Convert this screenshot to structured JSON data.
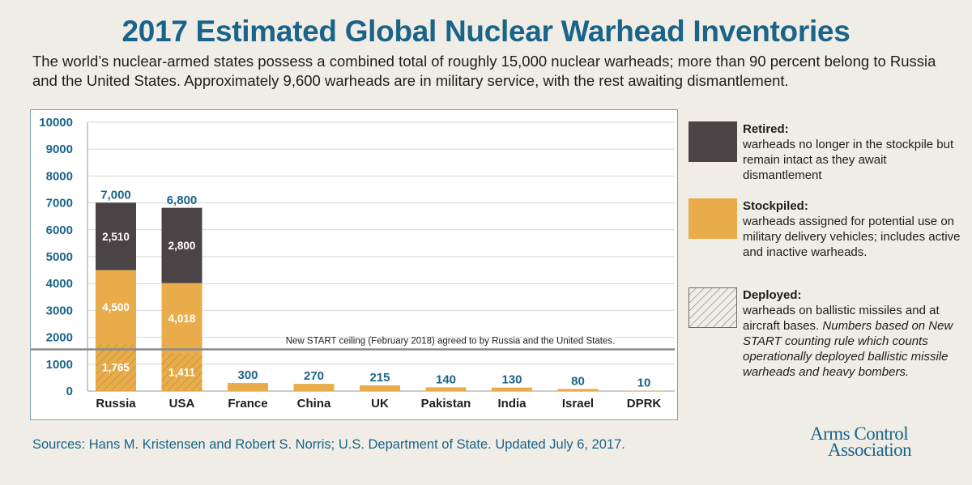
{
  "title": "2017 Estimated Global Nuclear Warhead Inventories",
  "subtitle": "The world’s nuclear-armed states possess a combined total of roughly 15,000 nuclear warheads; more than 90 percent belong to Russia and the United States. Approximately 9,600 warheads are in military service, with the rest awaiting dismantlement.",
  "sources": "Sources: Hans M. Kristensen and Robert S. Norris; U.S. Department of State. Updated July 6, 2017.",
  "logo": {
    "line1": "Arms Control",
    "line2": "Association"
  },
  "legend": {
    "retired": {
      "title": "Retired:",
      "text": "warheads no longer in the stockpile but remain intact as they await dismantlement"
    },
    "stockpiled": {
      "title": "Stockpiled:",
      "text": "warheads assigned for potential use on military delivery vehicles; includes active and inactive warheads."
    },
    "deployed": {
      "title": "Deployed:",
      "text": "warheads on ballistic missiles and at aircraft bases.",
      "note": "Numbers based on New START counting rule which counts operationally deployed ballistic missile warheads and heavy bombers."
    }
  },
  "colors": {
    "retired": "#4a4446",
    "stockpiled": "#e8ad4a",
    "deployed_hatch": "#b8893a",
    "total_label": "#1b6489",
    "axis_label": "#1b6489",
    "reference_line": "#8a8a8a"
  },
  "chart_data": {
    "type": "bar",
    "stacked": true,
    "categories": [
      "Russia",
      "USA",
      "France",
      "China",
      "UK",
      "Pakistan",
      "India",
      "Israel",
      "DPRK"
    ],
    "totals": [
      7000,
      6800,
      300,
      270,
      215,
      140,
      130,
      80,
      10
    ],
    "total_labels": [
      "7,000",
      "6,800",
      "300",
      "270",
      "215",
      "140",
      "130",
      "80",
      "10"
    ],
    "series": [
      {
        "name": "Stockpiled",
        "values": [
          4500,
          4018,
          300,
          270,
          215,
          140,
          130,
          80,
          10
        ],
        "labels": [
          "4,500",
          "4,018",
          "",
          "",
          "",
          "",
          "",
          "",
          ""
        ]
      },
      {
        "name": "Retired",
        "values": [
          2510,
          2800,
          0,
          0,
          0,
          0,
          0,
          0,
          0
        ],
        "labels": [
          "2,510",
          "2,800",
          "",
          "",
          "",
          "",
          "",
          "",
          ""
        ]
      }
    ],
    "deployed_overlay": {
      "values": [
        1765,
        1411,
        null,
        null,
        null,
        null,
        null,
        null,
        null
      ],
      "labels": [
        "1,765",
        "1,411",
        "",
        "",
        "",
        "",
        "",
        "",
        ""
      ]
    },
    "reference_line": {
      "value": 1550,
      "label": "New START ceiling (February 2018) agreed to by Russia and the United States."
    },
    "yticks": [
      0,
      1000,
      2000,
      3000,
      4000,
      5000,
      6000,
      7000,
      8000,
      9000,
      10000
    ],
    "ylim": [
      0,
      10000
    ],
    "grid": true,
    "legend_position": "right"
  }
}
